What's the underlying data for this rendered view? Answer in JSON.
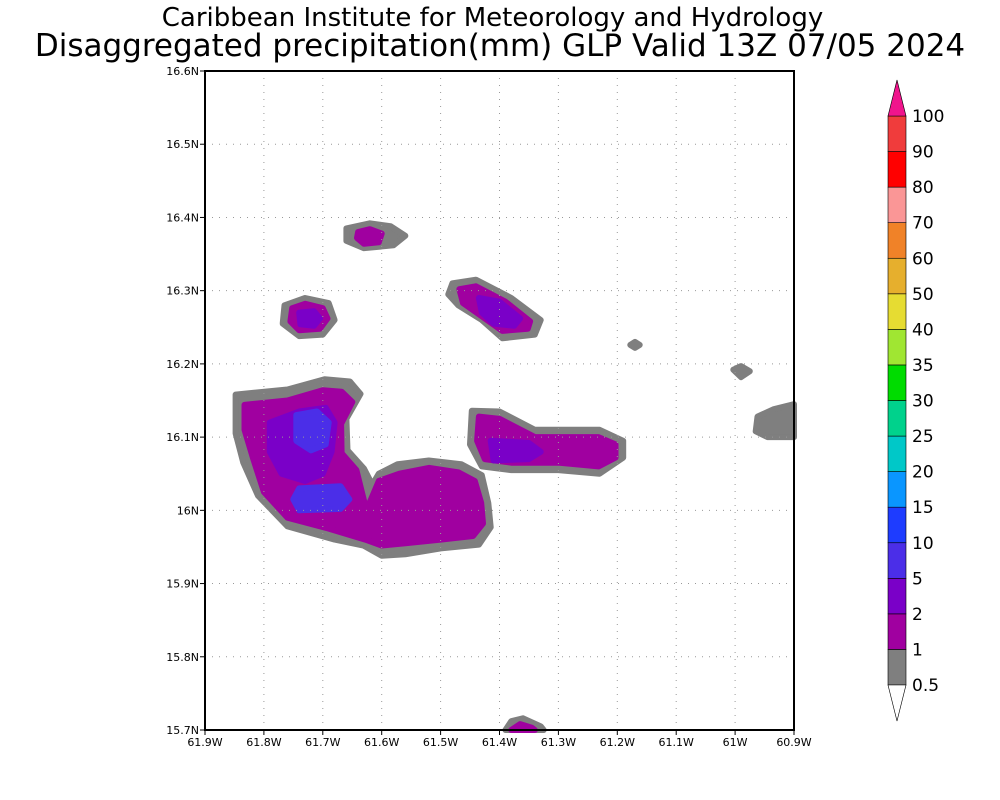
{
  "title": {
    "line1": "Caribbean Institute for Meteorology and Hydrology",
    "line2": "Disaggregated precipitation(mm) GLP Valid 13Z 07/05 2024"
  },
  "map": {
    "lon_range": [
      -61.9,
      -60.9
    ],
    "lat_range": [
      15.7,
      16.6
    ],
    "x_ticks": [
      {
        "lon": -61.9,
        "label": "61.9W"
      },
      {
        "lon": -61.8,
        "label": "61.8W"
      },
      {
        "lon": -61.7,
        "label": "61.7W"
      },
      {
        "lon": -61.6,
        "label": "61.6W"
      },
      {
        "lon": -61.5,
        "label": "61.5W"
      },
      {
        "lon": -61.4,
        "label": "61.4W"
      },
      {
        "lon": -61.3,
        "label": "61.3W"
      },
      {
        "lon": -61.2,
        "label": "61.2W"
      },
      {
        "lon": -61.1,
        "label": "61.1W"
      },
      {
        "lon": -61.0,
        "label": "61W"
      },
      {
        "lon": -60.9,
        "label": "60.9W"
      }
    ],
    "y_ticks": [
      {
        "lat": 15.7,
        "label": "15.7N"
      },
      {
        "lat": 15.8,
        "label": "15.8N"
      },
      {
        "lat": 15.9,
        "label": "15.9N"
      },
      {
        "lat": 16.0,
        "label": "16N"
      },
      {
        "lat": 16.1,
        "label": "16.1N"
      },
      {
        "lat": 16.2,
        "label": "16.2N"
      },
      {
        "lat": 16.3,
        "label": "16.3N"
      },
      {
        "lat": 16.4,
        "label": "16.4N"
      },
      {
        "lat": 16.5,
        "label": "16.5N"
      },
      {
        "lat": 16.6,
        "label": "16.6N"
      }
    ],
    "grid": true,
    "fields": [
      {
        "level": "0.5-1",
        "color": "#7f7f7f",
        "lon": -61.5,
        "lat": 15.953,
        "points": [
          [
            -61.848,
            16.158
          ],
          [
            -61.76,
            16.165
          ],
          [
            -61.697,
            16.179
          ],
          [
            -61.654,
            16.176
          ],
          [
            -61.636,
            16.159
          ],
          [
            -61.66,
            16.125
          ],
          [
            -61.658,
            16.082
          ],
          [
            -61.63,
            16.057
          ],
          [
            -61.616,
            16.035
          ],
          [
            -61.605,
            16.05
          ],
          [
            -61.573,
            16.063
          ],
          [
            -61.52,
            16.068
          ],
          [
            -61.465,
            16.063
          ],
          [
            -61.43,
            16.048
          ],
          [
            -61.419,
            16.01
          ],
          [
            -61.415,
            15.977
          ],
          [
            -61.435,
            15.953
          ],
          [
            -61.5,
            15.948
          ],
          [
            -61.56,
            15.94
          ],
          [
            -61.6,
            15.938
          ],
          [
            -61.631,
            15.952
          ],
          [
            -61.68,
            15.96
          ],
          [
            -61.76,
            15.978
          ],
          [
            -61.81,
            16.02
          ],
          [
            -61.835,
            16.065
          ],
          [
            -61.848,
            16.105
          ]
        ]
      },
      {
        "level": "1-2",
        "color": "#a000a0",
        "lon": -61.5,
        "lat": 15.96,
        "points": [
          [
            -61.833,
            16.144
          ],
          [
            -61.76,
            16.15
          ],
          [
            -61.7,
            16.164
          ],
          [
            -61.668,
            16.162
          ],
          [
            -61.65,
            16.148
          ],
          [
            -61.669,
            16.118
          ],
          [
            -61.668,
            16.078
          ],
          [
            -61.643,
            16.055
          ],
          [
            -61.626,
            16.0
          ],
          [
            -61.605,
            16.04
          ],
          [
            -61.57,
            16.05
          ],
          [
            -61.52,
            16.058
          ],
          [
            -61.47,
            16.052
          ],
          [
            -61.442,
            16.04
          ],
          [
            -61.431,
            16.01
          ],
          [
            -61.428,
            15.982
          ],
          [
            -61.445,
            15.965
          ],
          [
            -61.5,
            15.96
          ],
          [
            -61.56,
            15.955
          ],
          [
            -61.6,
            15.952
          ],
          [
            -61.628,
            15.96
          ],
          [
            -61.69,
            15.975
          ],
          [
            -61.76,
            15.99
          ],
          [
            -61.8,
            16.025
          ],
          [
            -61.818,
            16.07
          ],
          [
            -61.833,
            16.11
          ]
        ]
      },
      {
        "level": "2-5",
        "color": "#7a00c8",
        "lon": -61.78,
        "lat": 16.0,
        "points": [
          [
            -61.79,
            16.12
          ],
          [
            -61.74,
            16.135
          ],
          [
            -61.695,
            16.14
          ],
          [
            -61.68,
            16.12
          ],
          [
            -61.685,
            16.08
          ],
          [
            -61.7,
            16.05
          ],
          [
            -61.73,
            16.04
          ],
          [
            -61.77,
            16.05
          ],
          [
            -61.79,
            16.08
          ]
        ]
      },
      {
        "level": "5-10",
        "color": "#4b2ee8",
        "lon": -61.72,
        "lat": 16.1,
        "points": [
          [
            -61.745,
            16.13
          ],
          [
            -61.71,
            16.135
          ],
          [
            -61.69,
            16.12
          ],
          [
            -61.695,
            16.09
          ],
          [
            -61.72,
            16.082
          ],
          [
            -61.745,
            16.095
          ]
        ]
      },
      {
        "level": "5-10",
        "color": "#4b2ee8",
        "lon": -61.72,
        "lat": 16.02,
        "points": [
          [
            -61.74,
            16.03
          ],
          [
            -61.67,
            16.033
          ],
          [
            -61.655,
            16.015
          ],
          [
            -61.67,
            16.002
          ],
          [
            -61.74,
            16.0
          ],
          [
            -61.75,
            16.015
          ]
        ]
      },
      {
        "level": "0.5-1",
        "color": "#7f7f7f",
        "lon": -61.3,
        "lat": 16.1,
        "points": [
          [
            -61.447,
            16.136
          ],
          [
            -61.4,
            16.135
          ],
          [
            -61.34,
            16.11
          ],
          [
            -61.23,
            16.11
          ],
          [
            -61.19,
            16.095
          ],
          [
            -61.19,
            16.072
          ],
          [
            -61.23,
            16.05
          ],
          [
            -61.3,
            16.055
          ],
          [
            -61.38,
            16.055
          ],
          [
            -61.43,
            16.06
          ],
          [
            -61.45,
            16.09
          ]
        ]
      },
      {
        "level": "1-2",
        "color": "#a000a0",
        "lon": -61.3,
        "lat": 16.1,
        "points": [
          [
            -61.435,
            16.128
          ],
          [
            -61.4,
            16.125
          ],
          [
            -61.34,
            16.1
          ],
          [
            -61.232,
            16.1
          ],
          [
            -61.203,
            16.09
          ],
          [
            -61.203,
            16.072
          ],
          [
            -61.232,
            16.06
          ],
          [
            -61.3,
            16.065
          ],
          [
            -61.38,
            16.065
          ],
          [
            -61.425,
            16.07
          ],
          [
            -61.438,
            16.095
          ]
        ]
      },
      {
        "level": "2-5",
        "color": "#7a00c8",
        "lon": -61.3,
        "lat": 16.08,
        "points": [
          [
            -61.415,
            16.095
          ],
          [
            -61.35,
            16.092
          ],
          [
            -61.33,
            16.08
          ],
          [
            -61.35,
            16.07
          ],
          [
            -61.41,
            16.068
          ]
        ]
      },
      {
        "level": "0.5-1",
        "color": "#7f7f7f",
        "lon": -61.4,
        "lat": 16.28,
        "points": [
          [
            -61.48,
            16.31
          ],
          [
            -61.44,
            16.315
          ],
          [
            -61.38,
            16.29
          ],
          [
            -61.33,
            16.26
          ],
          [
            -61.34,
            16.24
          ],
          [
            -61.395,
            16.235
          ],
          [
            -61.43,
            16.26
          ],
          [
            -61.47,
            16.28
          ],
          [
            -61.487,
            16.295
          ]
        ]
      },
      {
        "level": "1-2",
        "color": "#a000a0",
        "lon": -61.4,
        "lat": 16.28,
        "points": [
          [
            -61.468,
            16.302
          ],
          [
            -61.44,
            16.306
          ],
          [
            -61.39,
            16.285
          ],
          [
            -61.348,
            16.258
          ],
          [
            -61.352,
            16.248
          ],
          [
            -61.395,
            16.245
          ],
          [
            -61.43,
            16.265
          ],
          [
            -61.462,
            16.283
          ]
        ]
      },
      {
        "level": "2-5",
        "color": "#7a00c8",
        "lon": -61.4,
        "lat": 16.27,
        "points": [
          [
            -61.435,
            16.29
          ],
          [
            -61.4,
            16.285
          ],
          [
            -61.365,
            16.262
          ],
          [
            -61.375,
            16.252
          ],
          [
            -61.41,
            16.255
          ],
          [
            -61.43,
            16.27
          ]
        ]
      },
      {
        "level": "0.5-1",
        "color": "#7f7f7f",
        "lon": -61.73,
        "lat": 16.26,
        "points": [
          [
            -61.765,
            16.28
          ],
          [
            -61.73,
            16.29
          ],
          [
            -61.69,
            16.283
          ],
          [
            -61.68,
            16.26
          ],
          [
            -61.7,
            16.24
          ],
          [
            -61.74,
            16.238
          ],
          [
            -61.768,
            16.255
          ]
        ]
      },
      {
        "level": "1-2",
        "color": "#a000a0",
        "lon": -61.73,
        "lat": 16.26,
        "points": [
          [
            -61.752,
            16.276
          ],
          [
            -61.73,
            16.282
          ],
          [
            -61.7,
            16.276
          ],
          [
            -61.692,
            16.262
          ],
          [
            -61.705,
            16.248
          ],
          [
            -61.74,
            16.246
          ],
          [
            -61.755,
            16.258
          ]
        ]
      },
      {
        "level": "2-5",
        "color": "#7a00c8",
        "lon": -61.73,
        "lat": 16.26,
        "points": [
          [
            -61.74,
            16.27
          ],
          [
            -61.715,
            16.272
          ],
          [
            -61.705,
            16.262
          ],
          [
            -61.715,
            16.252
          ],
          [
            -61.738,
            16.254
          ]
        ]
      },
      {
        "level": "0.5-1",
        "color": "#7f7f7f",
        "lon": -61.62,
        "lat": 16.37,
        "points": [
          [
            -61.66,
            16.385
          ],
          [
            -61.62,
            16.392
          ],
          [
            -61.585,
            16.388
          ],
          [
            -61.56,
            16.375
          ],
          [
            -61.58,
            16.362
          ],
          [
            -61.63,
            16.358
          ],
          [
            -61.66,
            16.368
          ]
        ]
      },
      {
        "level": "1-2",
        "color": "#a000a0",
        "lon": -61.62,
        "lat": 16.37,
        "points": [
          [
            -61.64,
            16.38
          ],
          [
            -61.62,
            16.384
          ],
          [
            -61.6,
            16.378
          ],
          [
            -61.605,
            16.366
          ],
          [
            -61.63,
            16.364
          ],
          [
            -61.642,
            16.372
          ]
        ]
      },
      {
        "level": "0.5-1",
        "color": "#7f7f7f",
        "lon": -61.17,
        "lat": 16.226,
        "points": [
          [
            -61.178,
            16.226
          ],
          [
            -61.17,
            16.23
          ],
          [
            -61.162,
            16.226
          ],
          [
            -61.17,
            16.222
          ]
        ]
      },
      {
        "level": "0.5-1",
        "color": "#7f7f7f",
        "lon": -60.99,
        "lat": 16.19,
        "points": [
          [
            -61.003,
            16.192
          ],
          [
            -60.99,
            16.197
          ],
          [
            -60.975,
            16.19
          ],
          [
            -60.99,
            16.182
          ]
        ]
      },
      {
        "level": "0.5-1",
        "color": "#7f7f7f",
        "lon": -60.92,
        "lat": 16.12,
        "points": [
          [
            -60.962,
            16.128
          ],
          [
            -60.935,
            16.138
          ],
          [
            -60.9,
            16.145
          ],
          [
            -60.9,
            16.1
          ],
          [
            -60.945,
            16.1
          ],
          [
            -60.965,
            16.108
          ]
        ]
      },
      {
        "level": "0.5-1",
        "color": "#7f7f7f",
        "lon": -61.36,
        "lat": 15.7,
        "points": [
          [
            -61.39,
            15.7
          ],
          [
            -61.38,
            15.712
          ],
          [
            -61.36,
            15.716
          ],
          [
            -61.33,
            15.705
          ],
          [
            -61.325,
            15.7
          ]
        ]
      },
      {
        "level": "1-2",
        "color": "#a000a0",
        "lon": -61.36,
        "lat": 15.7,
        "points": [
          [
            -61.38,
            15.7
          ],
          [
            -61.365,
            15.708
          ],
          [
            -61.345,
            15.703
          ],
          [
            -61.34,
            15.7
          ]
        ]
      }
    ]
  },
  "colorbar": {
    "levels": [
      {
        "label": "0.5",
        "color": "#7f7f7f"
      },
      {
        "label": "1",
        "color": "#a000a0"
      },
      {
        "label": "2",
        "color": "#7a00c8"
      },
      {
        "label": "5",
        "color": "#4b2ee8"
      },
      {
        "label": "10",
        "color": "#1e3cff"
      },
      {
        "label": "15",
        "color": "#0a96ff"
      },
      {
        "label": "20",
        "color": "#00c8c8"
      },
      {
        "label": "25",
        "color": "#00d28c"
      },
      {
        "label": "30",
        "color": "#00dc00"
      },
      {
        "label": "35",
        "color": "#a0e632"
      },
      {
        "label": "40",
        "color": "#e6dc32"
      },
      {
        "label": "50",
        "color": "#e6af2d"
      },
      {
        "label": "60",
        "color": "#f08228"
      },
      {
        "label": "70",
        "color": "#fa9696"
      },
      {
        "label": "80",
        "color": "#ff0000"
      },
      {
        "label": "90",
        "color": "#f03c3c"
      },
      {
        "label": "100",
        "color": "#f0148c"
      }
    ],
    "under_color": "#ffffff",
    "over_color": "#f0148c"
  }
}
